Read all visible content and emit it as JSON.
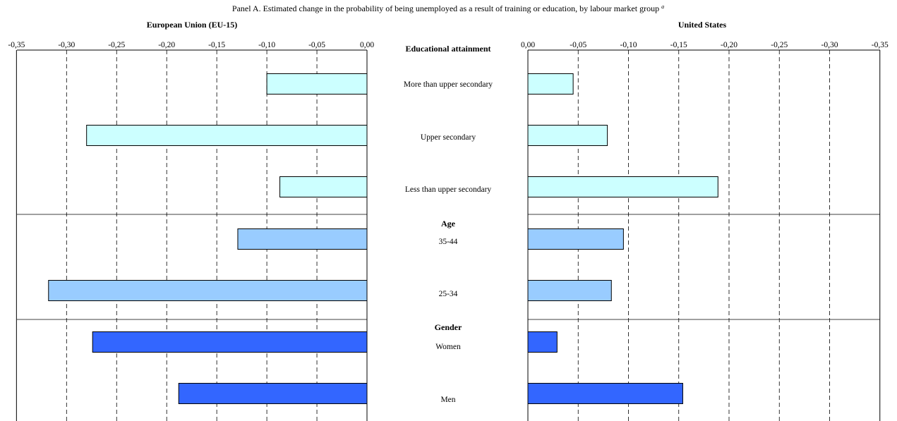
{
  "title": "Panel A. Estimated change in the probability of being unemployed as a result of training or education, by labour market group",
  "title_note": "a",
  "chart_data": {
    "type": "bar",
    "orientation": "horizontal",
    "grid": "vertical dashed",
    "axis_ticks": [
      "0,00",
      "-0,05",
      "-0,10",
      "-0,15",
      "-0,20",
      "-0,25",
      "-0,30",
      "-0,35"
    ],
    "xlim": [
      0,
      -0.35
    ],
    "groups": [
      {
        "label": "Educational attainment",
        "color": "#CCFFFF",
        "categories": [
          "More than upper secondary",
          "Upper secondary",
          "Less than upper secondary"
        ]
      },
      {
        "label": "Age",
        "color": "#99CCFF",
        "categories": [
          "35-44",
          "25-34"
        ]
      },
      {
        "label": "Gender",
        "color": "#3366FF",
        "categories": [
          "Women",
          "Men"
        ]
      }
    ],
    "categories": [
      "More than upper secondary",
      "Upper secondary",
      "Less than upper secondary",
      "35-44",
      "25-34",
      "Women",
      "Men"
    ],
    "panels": [
      {
        "title": "European Union (EU-15)",
        "values": [
          -0.1,
          -0.28,
          -0.087,
          -0.129,
          -0.318,
          -0.274,
          -0.188
        ]
      },
      {
        "title": "United States",
        "values": [
          -0.045,
          -0.079,
          -0.189,
          -0.095,
          -0.083,
          -0.029,
          -0.154
        ]
      }
    ]
  }
}
